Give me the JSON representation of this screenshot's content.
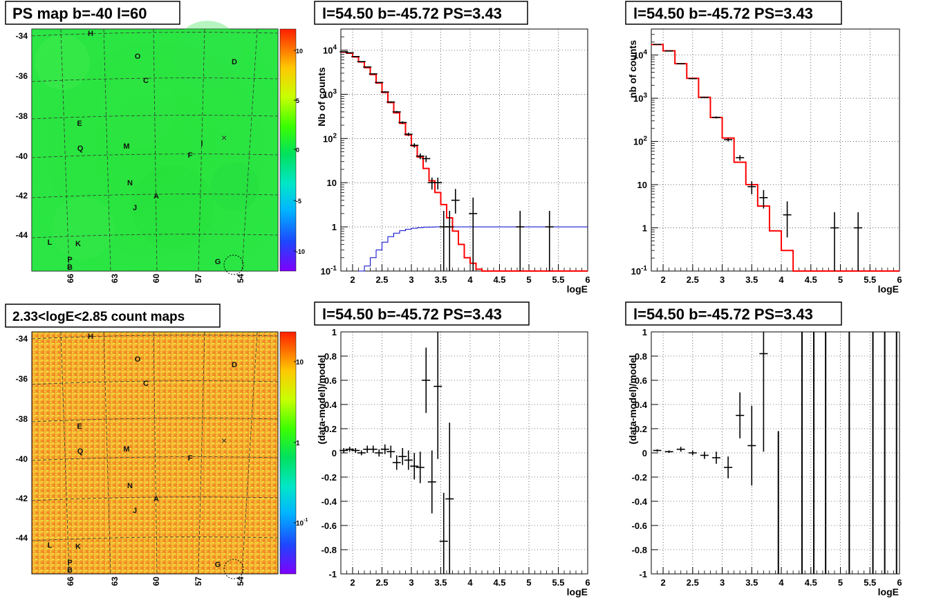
{
  "colors": {
    "red": "#ff0000",
    "blue": "#0000cc",
    "black": "#000000",
    "grid": "#000000"
  },
  "chart_data": [
    {
      "type": "heatmap",
      "title": "PS map b=-40 l=60",
      "colormap": "rainbow",
      "y_ticks": [
        "-34",
        "-36",
        "-38",
        "-40",
        "-42",
        "-44"
      ],
      "x_ticks": [
        "66",
        "63",
        "60",
        "57",
        "54"
      ],
      "colorbar_ticks": [
        "10",
        "5",
        "0",
        "-5",
        "-10"
      ],
      "zrange": [
        -13,
        13
      ],
      "dominant_value": 0,
      "sources": [
        "H",
        "O",
        "D",
        "C",
        "E",
        "M",
        "Q",
        "F",
        "I",
        "N",
        "A",
        "J",
        "L",
        "K",
        "P",
        "B",
        "G"
      ],
      "marker": "×"
    },
    {
      "type": "line",
      "title": "l=54.50 b=-45.72 PS=3.43",
      "xlabel": "logE",
      "ylabel": "Nb of counts",
      "xlim": [
        1.8,
        6
      ],
      "ylim": [
        0.1,
        30000
      ],
      "log_y": true,
      "grid": true,
      "x_ticks": [
        "2",
        "2.5",
        "3",
        "3.5",
        "4",
        "4.5",
        "5",
        "5.5",
        "6"
      ],
      "y_ticks": [
        {
          "v": 0.1,
          "t": "10",
          "sup": "-1"
        },
        {
          "v": 1,
          "t": "1",
          "sup": ""
        },
        {
          "v": 10,
          "t": "10",
          "sup": ""
        },
        {
          "v": 100,
          "t": "10",
          "sup": "2"
        },
        {
          "v": 1000,
          "t": "10",
          "sup": "3"
        },
        {
          "v": 10000,
          "t": "10",
          "sup": "4"
        }
      ],
      "series": [
        {
          "style": "step",
          "color": "#ff0000",
          "bin_width": 0.1,
          "edges": [
            1.8,
            1.9,
            2.0,
            2.1,
            2.2,
            2.3,
            2.4,
            2.5,
            2.6,
            2.7,
            2.8,
            2.9,
            3.0,
            3.1,
            3.2,
            3.3,
            3.4,
            3.5,
            3.6,
            3.7,
            3.8,
            3.9,
            4.0,
            4.1,
            4.2,
            6.0
          ],
          "values": [
            9000,
            8500,
            7000,
            5400,
            4000,
            2800,
            1800,
            1100,
            650,
            380,
            220,
            120,
            68,
            38,
            21,
            11,
            6,
            3.2,
            1.6,
            0.8,
            0.4,
            0.2,
            0.15,
            0.11,
            0.1
          ]
        },
        {
          "style": "step",
          "color": "#0000cc",
          "edges": [
            2.1,
            2.2,
            2.3,
            2.4,
            2.5,
            2.6,
            2.7,
            2.8,
            2.9,
            3.0,
            3.1,
            3.2,
            3.3,
            3.4,
            3.5,
            3.6,
            6.0
          ],
          "values": [
            0.1,
            0.13,
            0.2,
            0.3,
            0.45,
            0.6,
            0.72,
            0.82,
            0.88,
            0.93,
            0.96,
            0.98,
            0.99,
            1.0,
            1.0,
            1.0
          ]
        },
        {
          "style": "points",
          "color": "#000000",
          "x": [
            1.85,
            1.95,
            2.05,
            2.15,
            2.25,
            2.35,
            2.45,
            2.55,
            2.65,
            2.75,
            2.85,
            2.95,
            3.05,
            3.15,
            3.25,
            3.35,
            3.45,
            3.55,
            3.65,
            3.75,
            4.05,
            4.85,
            5.35
          ],
          "y": [
            9200,
            8700,
            7150,
            5500,
            4150,
            2900,
            1850,
            1130,
            670,
            400,
            230,
            125,
            70,
            40,
            35,
            10,
            10,
            1,
            1,
            4,
            2,
            1,
            1
          ],
          "yerr_lo": [
            96,
            93,
            85,
            74,
            64,
            54,
            43,
            34,
            26,
            20,
            15,
            11,
            8,
            6,
            6,
            3,
            3,
            0.9,
            0.9,
            2,
            1.9,
            0.9,
            0.9
          ],
          "yerr_hi": [
            96,
            93,
            85,
            74,
            64,
            54,
            43,
            34,
            26,
            20,
            15,
            11,
            8,
            6,
            6,
            3,
            3,
            1.3,
            1.3,
            3.2,
            2.6,
            1.3,
            1.3
          ]
        }
      ]
    },
    {
      "type": "line",
      "title": "l=54.50 b=-45.72 PS=3.43",
      "xlabel": "logE",
      "ylabel": "nb of counts",
      "xlim": [
        1.8,
        6
      ],
      "ylim": [
        0.1,
        40000
      ],
      "log_y": true,
      "grid": true,
      "x_ticks": [
        "2",
        "2.5",
        "3",
        "3.5",
        "4",
        "4.5",
        "5",
        "5.5",
        "6"
      ],
      "y_ticks": [
        {
          "v": 0.1,
          "t": "10",
          "sup": "-1"
        },
        {
          "v": 1,
          "t": "1",
          "sup": ""
        },
        {
          "v": 10,
          "t": "10",
          "sup": ""
        },
        {
          "v": 100,
          "t": "10",
          "sup": "2"
        },
        {
          "v": 1000,
          "t": "10",
          "sup": "3"
        },
        {
          "v": 10000,
          "t": "10",
          "sup": "4"
        }
      ],
      "series": [
        {
          "style": "step",
          "color": "#ff0000",
          "edges": [
            1.8,
            2.0,
            2.2,
            2.4,
            2.6,
            2.8,
            3.0,
            3.2,
            3.4,
            3.6,
            3.8,
            4.0,
            4.2,
            6.0
          ],
          "values": [
            17500,
            12500,
            6300,
            2900,
            1050,
            360,
            120,
            33,
            10,
            3.2,
            0.85,
            0.3,
            0.1
          ]
        },
        {
          "style": "points",
          "color": "#000000",
          "x": [
            1.9,
            2.1,
            2.3,
            2.5,
            2.7,
            2.9,
            3.1,
            3.3,
            3.5,
            3.7,
            4.1,
            4.9,
            5.3
          ],
          "y": [
            17600,
            12400,
            6300,
            2850,
            1050,
            360,
            110,
            42,
            9,
            5,
            2,
            1,
            1
          ],
          "yerr_lo": [
            130,
            110,
            80,
            53,
            32,
            19,
            10,
            6,
            3,
            2.2,
            1.4,
            0.9,
            0.9
          ],
          "yerr_hi": [
            130,
            110,
            80,
            53,
            32,
            19,
            10,
            6,
            3,
            2.5,
            2.1,
            1.3,
            1.3
          ]
        }
      ]
    },
    {
      "type": "heatmap",
      "title": "2.33<logE<2.85 count maps",
      "colormap": "rainbow",
      "y_ticks": [
        "-34",
        "-36",
        "-38",
        "-40",
        "-42",
        "-44"
      ],
      "x_ticks": [
        "66",
        "63",
        "60",
        "57",
        "54"
      ],
      "colorbar_ticks": [
        {
          "t": "10",
          "sup": ""
        },
        {
          "t": "1",
          "sup": ""
        },
        {
          "t": "10",
          "sup": "-1"
        }
      ],
      "log_z": true,
      "sources": [
        "H",
        "O",
        "D",
        "C",
        "E",
        "M",
        "Q",
        "F",
        "N",
        "A",
        "J",
        "L",
        "K",
        "P",
        "B",
        "G"
      ],
      "marker": "×"
    },
    {
      "type": "scatter",
      "title": "l=54.50 b=-45.72 PS=3.43",
      "xlabel": "logE",
      "ylabel": "(data-model)/model",
      "xlim": [
        1.8,
        6
      ],
      "ylim": [
        -1,
        1
      ],
      "grid": true,
      "x_ticks": [
        "2",
        "2.5",
        "3",
        "3.5",
        "4",
        "4.5",
        "5",
        "5.5",
        "6"
      ],
      "y_ticks": [
        "-1",
        "-0.8",
        "-0.6",
        "-0.4",
        "-0.2",
        "0",
        "0.2",
        "0.4",
        "0.6",
        "0.8",
        "1"
      ],
      "series": [
        {
          "style": "points",
          "color": "#000000",
          "x": [
            1.85,
            1.95,
            2.05,
            2.15,
            2.25,
            2.35,
            2.45,
            2.55,
            2.65,
            2.75,
            2.85,
            2.95,
            3.05,
            3.15,
            3.25,
            3.35,
            3.45,
            3.55,
            3.65
          ],
          "y": [
            0.02,
            0.03,
            0.02,
            0.0,
            0.03,
            0.03,
            0.0,
            0.03,
            0.01,
            -0.08,
            -0.03,
            -0.06,
            -0.11,
            -0.12,
            0.6,
            -0.24,
            0.55,
            -0.73,
            -0.38
          ],
          "yerr": [
            0.02,
            0.02,
            0.02,
            0.02,
            0.03,
            0.03,
            0.03,
            0.04,
            0.05,
            0.06,
            0.07,
            0.08,
            0.11,
            0.13,
            0.27,
            0.26,
            0.6,
            0.4,
            0.63
          ]
        }
      ]
    },
    {
      "type": "scatter",
      "title": "l=54.50 b=-45.72 PS=3.43",
      "xlabel": "logE",
      "ylabel": "(data-model)/model",
      "xlim": [
        1.8,
        6
      ],
      "ylim": [
        -1,
        1
      ],
      "grid": true,
      "x_ticks": [
        "2",
        "2.5",
        "3",
        "3.5",
        "4",
        "4.5",
        "5",
        "5.5",
        "6"
      ],
      "y_ticks": [
        "-1",
        "-0.8",
        "-0.6",
        "-0.4",
        "-0.2",
        "0",
        "0.2",
        "0.4",
        "0.6",
        "0.8",
        "1"
      ],
      "series": [
        {
          "style": "points",
          "color": "#000000",
          "x": [
            1.9,
            2.1,
            2.3,
            2.5,
            2.7,
            2.9,
            3.1,
            3.3,
            3.5,
            3.7
          ],
          "y": [
            0.02,
            0.01,
            0.03,
            0.0,
            -0.02,
            -0.04,
            -0.12,
            0.31,
            0.06,
            0.82
          ],
          "yerr": [
            0.01,
            0.01,
            0.02,
            0.02,
            0.03,
            0.05,
            0.09,
            0.19,
            0.33,
            0.81
          ]
        },
        {
          "style": "vlines",
          "color": "#000000",
          "x": [
            3.95,
            4.35,
            4.55,
            4.75,
            5.15,
            5.55,
            5.75,
            5.95
          ],
          "y0": [
            -1,
            -1,
            -1,
            -1,
            -1,
            -1,
            -1,
            -1
          ],
          "y1": [
            0.18,
            1,
            1,
            1,
            1,
            1,
            1,
            1
          ]
        }
      ]
    }
  ]
}
